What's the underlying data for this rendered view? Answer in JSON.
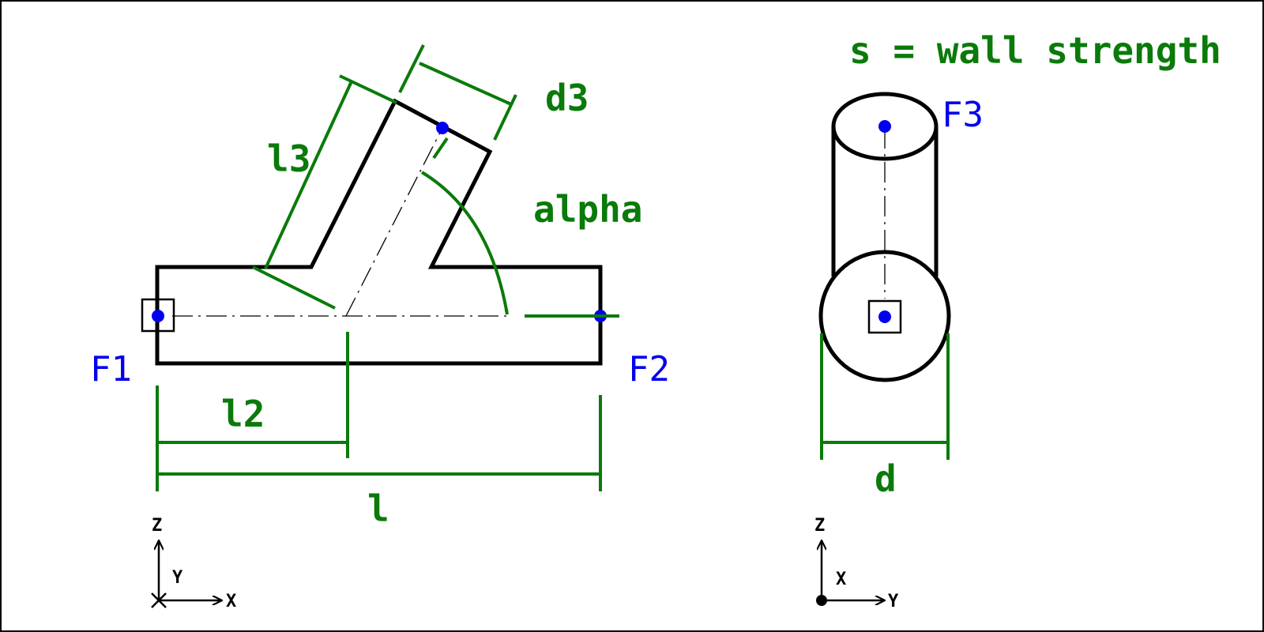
{
  "colors": {
    "outline": "#000000",
    "dimension": "#0a7a0a",
    "load": "#0000ee",
    "background": "#ffffff"
  },
  "note": "s = wall strength",
  "dimensions": {
    "l": "l",
    "l2": "l2",
    "l3": "l3",
    "d3": "d3",
    "alpha": "alpha",
    "d": "d"
  },
  "loads": {
    "f1": "F1",
    "f2": "F2",
    "f3": "F3"
  },
  "front_axes": {
    "vertical": "Z",
    "horizontal": "X",
    "depth": "Y"
  },
  "side_axes": {
    "vertical": "Z",
    "horizontal": "Y",
    "depth": "X"
  }
}
